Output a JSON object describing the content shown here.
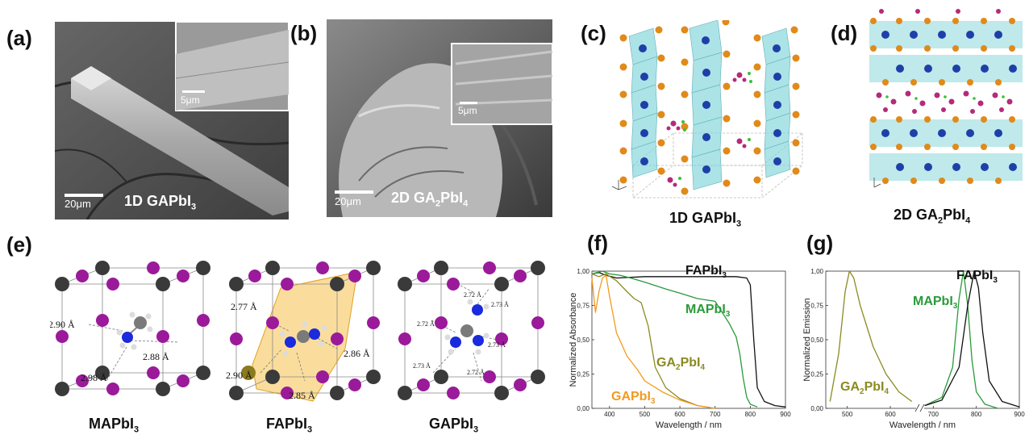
{
  "panels": {
    "a": {
      "label": "(a)",
      "scale_main": "20μm",
      "scale_inset": "5μm",
      "text_main": "1D GAPbI",
      "text_sub": "3"
    },
    "b": {
      "label": "(b)",
      "scale_main": "20μm",
      "scale_inset": "5μm",
      "text_main": "2D GA",
      "text_sub1": "2",
      "text_mid": "PbI",
      "text_sub2": "4"
    },
    "c": {
      "label": "(c)",
      "caption_main": "1D GAPbI",
      "caption_sub": "3"
    },
    "d": {
      "label": "(d)",
      "caption_main": "2D GA",
      "caption_sub1": "2",
      "caption_mid": "PbI",
      "caption_sub2": "4"
    },
    "e": {
      "label": "(e)",
      "structures": [
        {
          "caption_main": "MAPbI",
          "caption_sub": "3",
          "distances": [
            "2.90 Å",
            "2.88 Å",
            "2.98 Å"
          ]
        },
        {
          "caption_main": "FAPbI",
          "caption_sub": "3",
          "distances": [
            "2.77 Å",
            "2.86 Å",
            "2.90 Å",
            "2.85 Å"
          ]
        },
        {
          "caption_main": "GAPbI",
          "caption_sub": "3",
          "distances": [
            "2.72 Å",
            "2.73 Å",
            "2.72 Å",
            "2.73 Å",
            "2.73 Å",
            "2.72 Å"
          ]
        }
      ]
    },
    "f": {
      "label": "(f)"
    },
    "g": {
      "label": "(g)"
    }
  },
  "colors": {
    "fa": "#111111",
    "ma": "#2a9a3a",
    "ga2": "#8a8a20",
    "ga": "#f39a1e",
    "iodide": "#9a1a9a",
    "lead": "#3a3a3a",
    "nitrogen": "#1a2adc",
    "octahedron": "#7fd4d8"
  },
  "chart_data": [
    {
      "type": "line",
      "title": "",
      "xlabel": "Wavelength / nm",
      "ylabel": "Normalized Absorbance",
      "xlim": [
        350,
        900
      ],
      "ylim": [
        0,
        1.0
      ],
      "xticks": [
        400,
        500,
        600,
        700,
        800,
        900
      ],
      "yticks": [
        "0,00",
        "0,25",
        "0,50",
        "0,75",
        "1,00"
      ],
      "series": [
        {
          "name": "FAPbI",
          "name_sub": "3",
          "color": "#111111",
          "x": [
            350,
            370,
            390,
            420,
            500,
            600,
            700,
            760,
            790,
            800,
            810,
            820,
            840,
            870,
            900
          ],
          "y": [
            0.98,
            0.99,
            0.97,
            0.95,
            0.96,
            0.96,
            0.96,
            0.96,
            0.95,
            0.9,
            0.5,
            0.15,
            0.05,
            0.02,
            0.01
          ]
        },
        {
          "name": "MAPbI",
          "name_sub": "3",
          "color": "#2a9a3a",
          "x": [
            350,
            380,
            400,
            430,
            460,
            500,
            560,
            600,
            650,
            700,
            720,
            740,
            760,
            770,
            780,
            790,
            800,
            820
          ],
          "y": [
            0.98,
            1.0,
            0.98,
            0.97,
            0.95,
            0.92,
            0.87,
            0.84,
            0.8,
            0.78,
            0.7,
            0.62,
            0.52,
            0.4,
            0.22,
            0.08,
            0.03,
            0.01
          ]
        },
        {
          "name": "GA",
          "name_sub": "2",
          "name_mid": "PbI",
          "name_sub2": "4",
          "color": "#8a8a20",
          "x": [
            350,
            370,
            390,
            420,
            450,
            470,
            490,
            510,
            530,
            560,
            600,
            650,
            700
          ],
          "y": [
            0.98,
            0.96,
            0.98,
            0.93,
            0.85,
            0.8,
            0.77,
            0.6,
            0.3,
            0.15,
            0.07,
            0.02,
            0.0
          ]
        },
        {
          "name": "GAPbI",
          "name_sub": "3",
          "color": "#f39a1e",
          "x": [
            350,
            360,
            370,
            380,
            390,
            400,
            420,
            450,
            480,
            500,
            550,
            600,
            650,
            700
          ],
          "y": [
            0.95,
            0.7,
            0.85,
            0.95,
            0.97,
            0.82,
            0.55,
            0.38,
            0.28,
            0.2,
            0.12,
            0.06,
            0.02,
            0.0
          ]
        }
      ]
    },
    {
      "type": "line",
      "title": "",
      "xlabel": "Wavelength / nm",
      "ylabel": "Normalized Emission",
      "xlim": [
        450,
        900
      ],
      "ylim": [
        0,
        1.0
      ],
      "xticks": [
        500,
        600,
        700,
        800,
        900
      ],
      "yticks": [
        "0,00",
        "0,25",
        "0,50",
        "0,75",
        "1,00"
      ],
      "series": [
        {
          "name": "GA",
          "name_sub": "2",
          "name_mid": "PbI",
          "name_sub2": "4",
          "color": "#8a8a20",
          "x": [
            460,
            480,
            495,
            505,
            515,
            530,
            560,
            590,
            620,
            650
          ],
          "y": [
            0.05,
            0.4,
            0.85,
            1.0,
            0.95,
            0.75,
            0.45,
            0.25,
            0.12,
            0.05
          ]
        },
        {
          "name": "MAPbI",
          "name_sub": "3",
          "color": "#2a9a3a",
          "x": [
            680,
            720,
            745,
            760,
            770,
            780,
            790,
            800,
            820,
            850
          ],
          "y": [
            0.02,
            0.08,
            0.3,
            0.8,
            1.0,
            0.75,
            0.35,
            0.12,
            0.03,
            0.0
          ]
        },
        {
          "name": "FAPbI",
          "name_sub": "3",
          "color": "#111111",
          "x": [
            680,
            720,
            760,
            780,
            795,
            805,
            815,
            830,
            860,
            900
          ],
          "y": [
            0.02,
            0.06,
            0.3,
            0.75,
            1.0,
            0.88,
            0.55,
            0.2,
            0.05,
            0.01
          ]
        }
      ]
    }
  ]
}
